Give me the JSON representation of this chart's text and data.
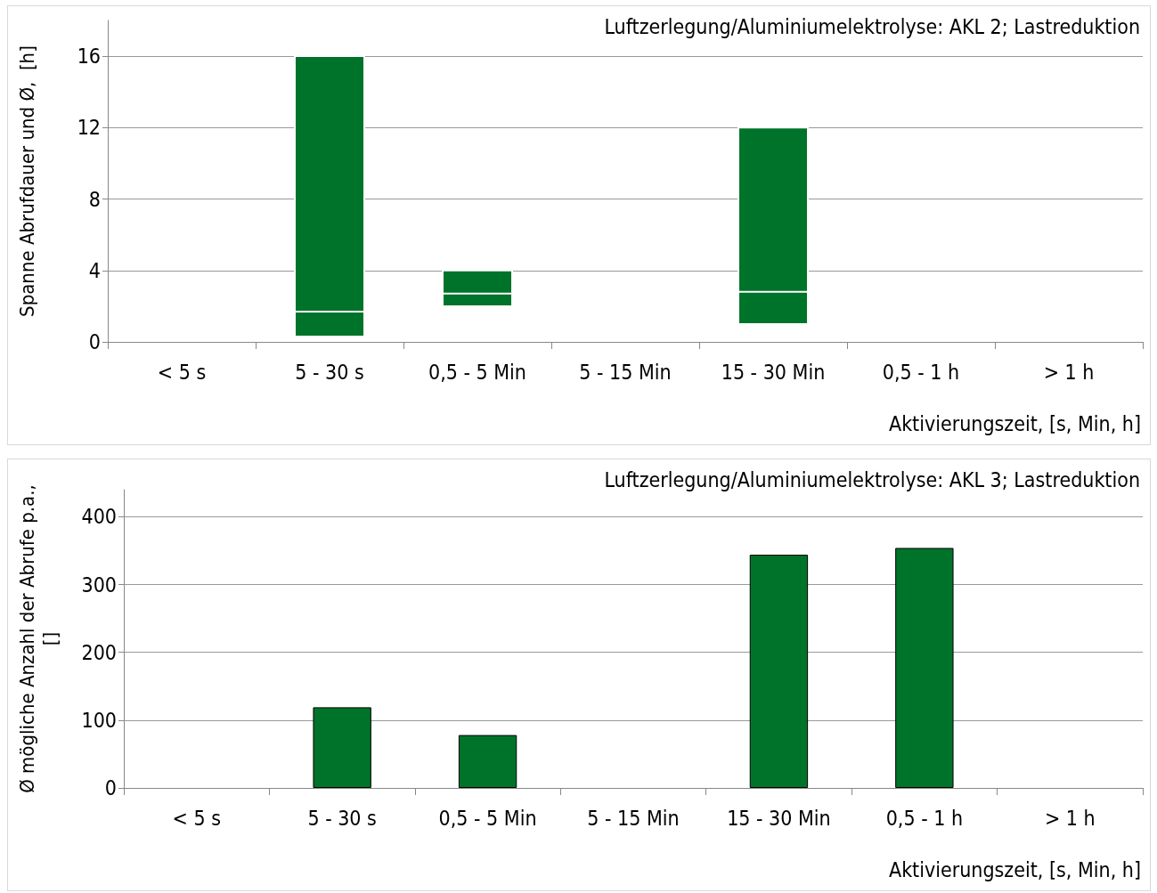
{
  "chart_data": [
    {
      "type": "box",
      "title": "Luftzerlegung/Aluminiumelektrolyse: AKL 2; Lastreduktion",
      "xlabel": "Aktivierungszeit, [s, Min, h]",
      "ylabel": "Spanne Abrufdauer und Ø,  [h]",
      "categories": [
        "< 5 s",
        "5 - 30 s",
        "0,5 - 5 Min",
        "5 - 15 Min",
        "15 - 30 Min",
        "0,5 - 1 h",
        "> 1 h"
      ],
      "series": [
        {
          "color": "#00732a",
          "boxes": [
            null,
            {
              "low": 0.3,
              "q1": 0.3,
              "median": 1.7,
              "q3": 16,
              "high": 16
            },
            {
              "low": 2.0,
              "q1": 2.0,
              "median": 2.7,
              "q3": 4.0,
              "high": 4.0
            },
            null,
            {
              "low": 1.0,
              "q1": 1.0,
              "median": 2.8,
              "q3": 12,
              "high": 12
            },
            null,
            null
          ]
        }
      ],
      "ylim": [
        0,
        18
      ],
      "yticks": [
        0,
        4,
        8,
        12,
        16
      ],
      "grid": "y"
    },
    {
      "type": "bar",
      "title": "Luftzerlegung/Aluminiumelektrolyse: AKL 3; Lastreduktion",
      "xlabel": "Aktivierungszeit, [s, Min, h]",
      "ylabel": "Ø mögliche Anzahl der Abrufe p.a.,\n[]",
      "categories": [
        "< 5 s",
        "5 - 30 s",
        "0,5 - 5 Min",
        "5 - 15 Min",
        "15 - 30 Min",
        "0,5 - 1 h",
        "> 1 h"
      ],
      "series": [
        {
          "color": "#00732a",
          "values": [
            null,
            119,
            78,
            null,
            344,
            354,
            null
          ]
        }
      ],
      "ylim": [
        0,
        440
      ],
      "yticks": [
        0,
        100,
        200,
        300,
        400
      ],
      "grid": "y"
    }
  ]
}
